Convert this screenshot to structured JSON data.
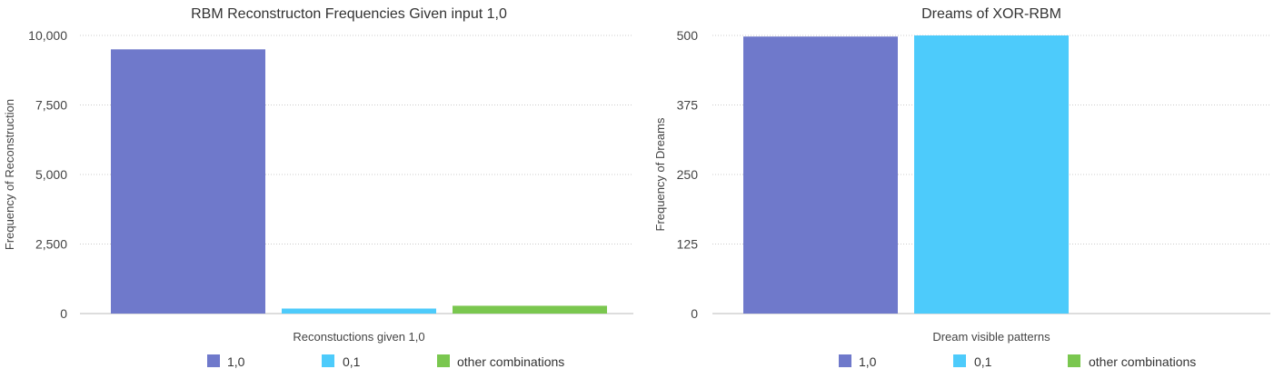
{
  "chart_data": [
    {
      "type": "bar",
      "title": "RBM Reconstructon Frequencies Given input 1,0",
      "xlabel": "Reconstuctions given 1,0",
      "ylabel": "Frequency of Reconstruction",
      "ylim": [
        0,
        10000
      ],
      "yticks": [
        "0",
        "2,500",
        "5,000",
        "7,500",
        "10,000"
      ],
      "ytick_values": [
        0,
        2500,
        5000,
        7500,
        10000
      ],
      "grid": true,
      "legend_position": "bottom",
      "series": [
        {
          "name": "1,0",
          "color": "#6f79cb",
          "values": [
            9500
          ]
        },
        {
          "name": "0,1",
          "color": "#4dcbfb",
          "values": [
            180
          ]
        },
        {
          "name": "other combinations",
          "color": "#7ac74f",
          "values": [
            280
          ]
        }
      ]
    },
    {
      "type": "bar",
      "title": "Dreams of XOR-RBM",
      "xlabel": "Dream visible patterns",
      "ylabel": "Frequency of Dreams",
      "ylim": [
        0,
        500
      ],
      "yticks": [
        "0",
        "125",
        "250",
        "375",
        "500"
      ],
      "ytick_values": [
        0,
        125,
        250,
        375,
        500
      ],
      "grid": true,
      "legend_position": "bottom",
      "series": [
        {
          "name": "1,0",
          "color": "#6f79cb",
          "values": [
            498
          ]
        },
        {
          "name": "0,1",
          "color": "#4dcbfb",
          "values": [
            500
          ]
        },
        {
          "name": "other combinations",
          "color": "#7ac74f",
          "values": [
            0
          ]
        }
      ]
    }
  ]
}
